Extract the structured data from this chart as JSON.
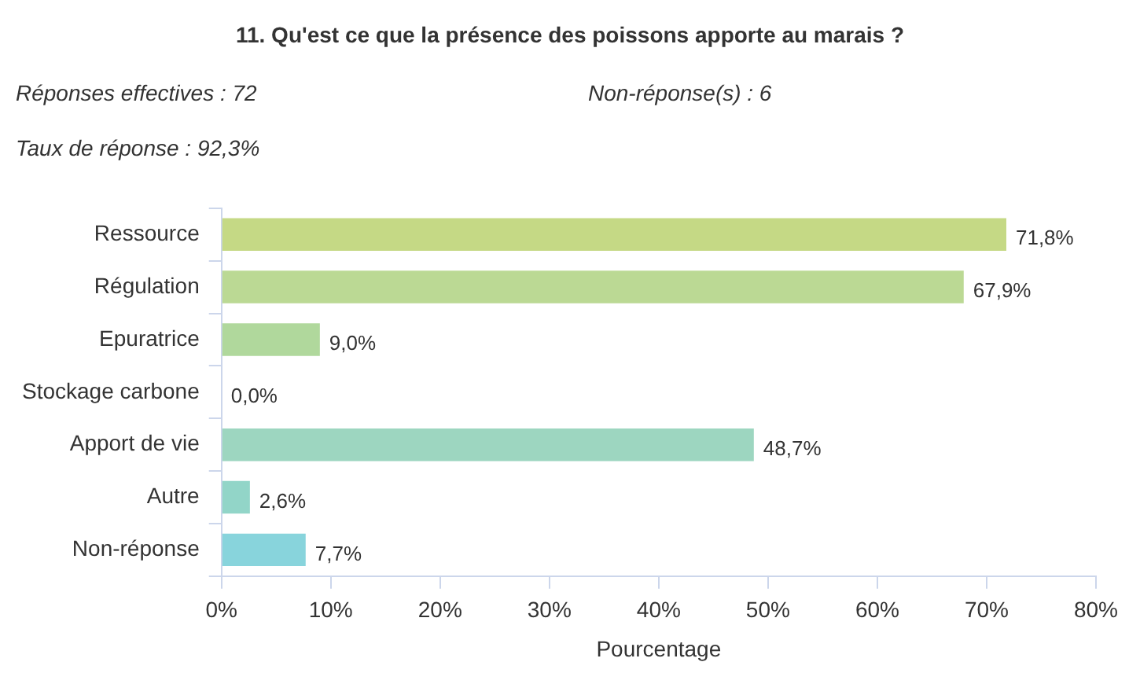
{
  "chart_data": {
    "type": "bar",
    "orientation": "horizontal",
    "title": "11. Qu'est ce que la présence des poissons apporte au marais ?",
    "annotations": [
      "Réponses effectives : 72",
      "Non-réponse(s) : 6",
      "Taux de réponse : 92,3%"
    ],
    "categories": [
      "Ressource",
      "Régulation",
      "Epuratrice",
      "Stockage carbone",
      "Apport de vie",
      "Autre",
      "Non-réponse"
    ],
    "values": [
      71.8,
      67.9,
      9.0,
      0.0,
      48.7,
      2.6,
      7.7
    ],
    "value_labels": [
      "71,8%",
      "67,9%",
      "9,0%",
      "0,0%",
      "48,7%",
      "2,6%",
      "7,7%"
    ],
    "colors": [
      "#c5d985",
      "#bbd994",
      "#b0d89c",
      "#a6d7ab",
      "#9dd6c0",
      "#92d5c8",
      "#88d4dc"
    ],
    "xlabel": "Pourcentage",
    "xlim": [
      0,
      80
    ],
    "xticks": [
      {
        "value": 0,
        "label": "0%"
      },
      {
        "value": 10,
        "label": "10%"
      },
      {
        "value": 20,
        "label": "20%"
      },
      {
        "value": 30,
        "label": "30%"
      },
      {
        "value": 40,
        "label": "40%"
      },
      {
        "value": 50,
        "label": "50%"
      },
      {
        "value": 60,
        "label": "60%"
      },
      {
        "value": 70,
        "label": "70%"
      },
      {
        "value": 80,
        "label": "80%"
      }
    ],
    "grid": false,
    "legend": false
  }
}
